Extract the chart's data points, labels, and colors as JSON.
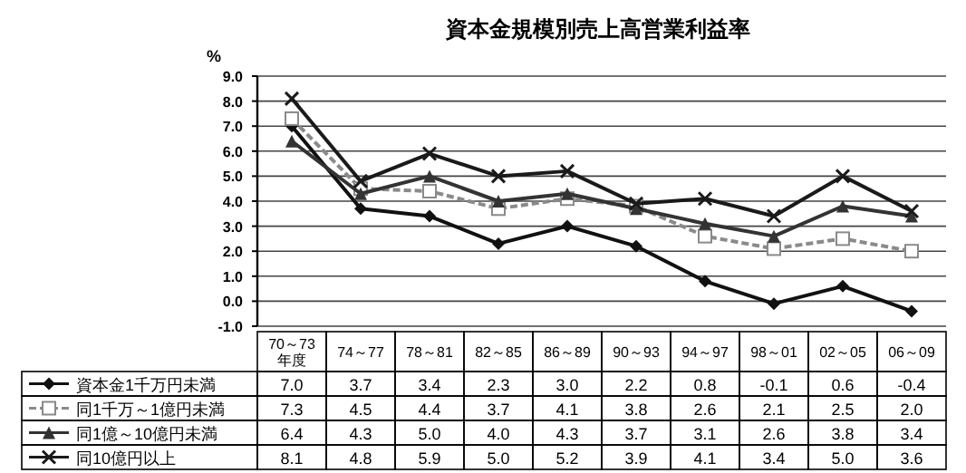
{
  "chart_data": {
    "type": "line",
    "title": "資本金規模別売上高営業利益率",
    "ylabel": "%",
    "categories": [
      "70～73\n年度",
      "74～77",
      "78～81",
      "82～85",
      "86～89",
      "90～93",
      "94～97",
      "98～01",
      "02～05",
      "06～09"
    ],
    "series": [
      {
        "name": "資本金1千万円未満",
        "color": "#111111",
        "marker": "diamond",
        "line_style": "solid",
        "values": [
          7.0,
          3.7,
          3.4,
          2.3,
          3.0,
          2.2,
          0.8,
          -0.1,
          0.6,
          -0.4
        ],
        "value_labels": [
          "7.0",
          "3.7",
          "3.4",
          "2.3",
          "3.0",
          "2.2",
          "0.8",
          "-0.1",
          "0.6",
          "-0.4"
        ]
      },
      {
        "name": "同1千万～1億円未満",
        "color": "#8a8a8a",
        "marker": "square",
        "line_style": "dashed",
        "values": [
          7.3,
          4.5,
          4.4,
          3.7,
          4.1,
          3.8,
          2.6,
          2.1,
          2.5,
          2.0
        ],
        "value_labels": [
          "7.3",
          "4.5",
          "4.4",
          "3.7",
          "4.1",
          "3.8",
          "2.6",
          "2.1",
          "2.5",
          "2.0"
        ]
      },
      {
        "name": "同1億～10億円未満",
        "color": "#333333",
        "marker": "triangle",
        "line_style": "solid",
        "values": [
          6.4,
          4.3,
          5.0,
          4.0,
          4.3,
          3.7,
          3.1,
          2.6,
          3.8,
          3.4
        ],
        "value_labels": [
          "6.4",
          "4.3",
          "5.0",
          "4.0",
          "4.3",
          "3.7",
          "3.1",
          "2.6",
          "3.8",
          "3.4"
        ]
      },
      {
        "name": "同10億円以上",
        "color": "#1a1a1a",
        "marker": "cross",
        "line_style": "solid",
        "values": [
          8.1,
          4.8,
          5.9,
          5.0,
          5.2,
          3.9,
          4.1,
          3.4,
          5.0,
          3.6
        ],
        "value_labels": [
          "8.1",
          "4.8",
          "5.9",
          "5.0",
          "5.2",
          "3.9",
          "4.1",
          "3.4",
          "5.0",
          "3.6"
        ]
      }
    ],
    "ylim": [
      -1,
      9
    ],
    "yticks": [
      {
        "value": 9,
        "label": "9.0"
      },
      {
        "value": 8,
        "label": "8.0"
      },
      {
        "value": 7,
        "label": "7.0"
      },
      {
        "value": 6,
        "label": "6.0"
      },
      {
        "value": 5,
        "label": "5.0"
      },
      {
        "value": 4,
        "label": "4.0"
      },
      {
        "value": 3,
        "label": "3.0"
      },
      {
        "value": 2,
        "label": "2.0"
      },
      {
        "value": 1,
        "label": "1.0"
      },
      {
        "value": 0,
        "label": "0.0"
      },
      {
        "value": -1,
        "label": "-1.0"
      }
    ],
    "grid": "y",
    "legend": "bottom"
  }
}
